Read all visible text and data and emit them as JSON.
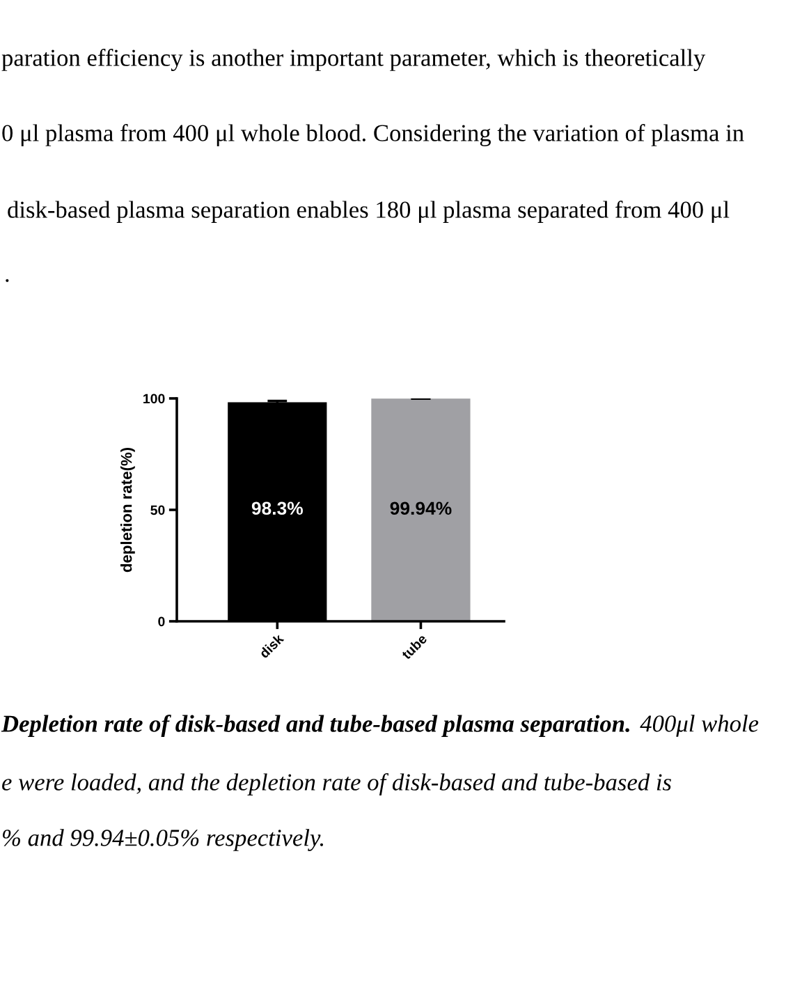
{
  "chart_data": {
    "type": "bar",
    "categories": [
      "disk",
      "tube"
    ],
    "values": [
      98.3,
      99.94
    ],
    "colors": [
      "#000000",
      "#a0a0a4"
    ],
    "errors": [
      0.6,
      0.05
    ],
    "value_labels": [
      "98.3%",
      "99.94%"
    ],
    "ylabel": "depletion rate(%)",
    "ylim": [
      0,
      100
    ],
    "yticks": [
      0,
      50,
      100
    ],
    "annotations": [
      "paration efficiency is another important parameter, which is theoretically",
      "0 μl plasma from 400 μl whole blood. Considering the variation of plasma in",
      "disk-based plasma separation enables 180 μl plasma separated from 400 μl",
      ".",
      "Depletion rate of disk-based and tube-based plasma separation.",
      "400μl whole",
      "e were loaded, and the depletion rate of disk-based and tube-based is",
      "% and 99.94±0.05% respectively."
    ]
  }
}
